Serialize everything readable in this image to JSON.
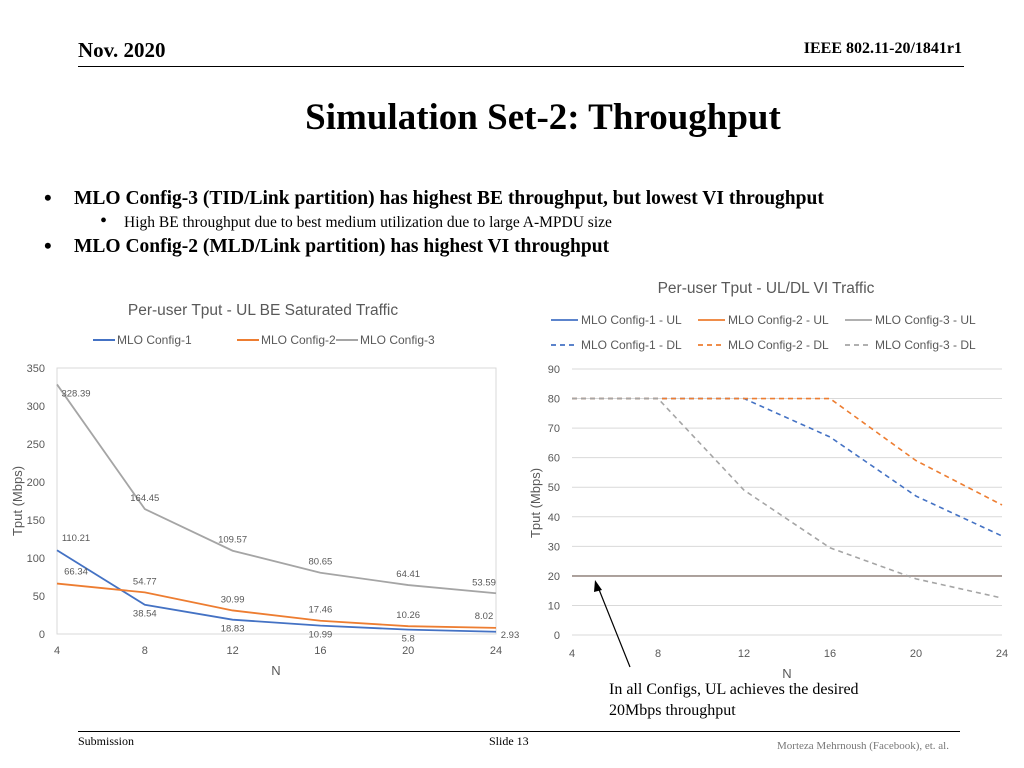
{
  "header": {
    "date": "Nov. 2020",
    "doc_id": "IEEE 802.11-20/1841r1"
  },
  "title": "Simulation Set-2: Throughput",
  "bullets": [
    {
      "text": "MLO Config-3 (TID/Link partition) has highest BE throughput, but lowest VI throughput"
    },
    {
      "text": "High BE throughput due to best medium utilization due to large A-MPDU size"
    },
    {
      "text": "MLO Config-2 (MLD/Link partition) has highest VI throughput"
    }
  ],
  "annotation": {
    "line1": "In all Configs,  UL achieves the desired",
    "line2": "20Mbps throughput"
  },
  "footer": {
    "left": "Submission",
    "center": "Slide 13",
    "right": "Morteza Mehrnoush (Facebook), et. al."
  },
  "colors": {
    "config1": "#4472C4",
    "config2": "#ED7D31",
    "config3": "#A5A5A5",
    "grid": "#D9D9D9",
    "text": "#595959"
  },
  "chart_data": [
    {
      "type": "line",
      "title": "Per-user Tput - UL BE Saturated Traffic",
      "xlabel": "N",
      "ylabel": "Tput (Mbps)",
      "x": [
        4,
        8,
        12,
        16,
        20,
        24
      ],
      "ylim": [
        0,
        350
      ],
      "yticks": [
        0,
        50,
        100,
        150,
        200,
        250,
        300,
        350
      ],
      "grid": false,
      "legend": "top",
      "series": [
        {
          "name": "MLO Config-1",
          "values": [
            110.21,
            38.54,
            18.83,
            10.99,
            5.8,
            2.93
          ],
          "labels": [
            "110.21",
            "38.54",
            "18.83",
            "10.99",
            "5.8",
            "2.93"
          ],
          "color": "#4472C4",
          "dash": false
        },
        {
          "name": "MLO Config-2",
          "values": [
            66.34,
            54.77,
            30.99,
            17.46,
            10.26,
            8.02
          ],
          "labels": [
            "66.34",
            "54.77",
            "30.99",
            "17.46",
            "10.26",
            "8.02"
          ],
          "color": "#ED7D31",
          "dash": false
        },
        {
          "name": "MLO Config-3",
          "values": [
            328.39,
            164.45,
            109.57,
            80.65,
            64.41,
            53.59
          ],
          "labels": [
            "328.39",
            "164.45",
            "109.57",
            "80.65",
            "64.41",
            "53.59"
          ],
          "color": "#A5A5A5",
          "dash": false
        }
      ]
    },
    {
      "type": "line",
      "title": "Per-user Tput - UL/DL VI Traffic",
      "xlabel": "N",
      "ylabel": "Tput (Mbps)",
      "x": [
        4,
        8,
        12,
        16,
        20,
        24
      ],
      "ylim": [
        0,
        90
      ],
      "yticks": [
        0,
        10,
        20,
        30,
        40,
        50,
        60,
        70,
        80,
        90
      ],
      "grid": true,
      "legend": "top",
      "series": [
        {
          "name": "MLO Config-1 - UL",
          "values": [
            20,
            20,
            20,
            20,
            20,
            20
          ],
          "color": "#4472C4",
          "dash": false
        },
        {
          "name": "MLO Config-2 - UL",
          "values": [
            20,
            20,
            20,
            20,
            20,
            20
          ],
          "color": "#ED7D31",
          "dash": false
        },
        {
          "name": "MLO Config-3 - UL",
          "values": [
            20,
            20,
            20,
            20,
            20,
            20
          ],
          "color": "#A5A5A5",
          "dash": false
        },
        {
          "name": "MLO Config-1 - DL",
          "values": [
            80,
            80,
            80,
            67,
            47,
            33.5
          ],
          "color": "#4472C4",
          "dash": true
        },
        {
          "name": "MLO Config-2 - DL",
          "values": [
            80,
            80,
            80,
            80,
            59,
            44
          ],
          "color": "#ED7D31",
          "dash": true
        },
        {
          "name": "MLO Config-3 - DL",
          "values": [
            80,
            80,
            49,
            29.5,
            19,
            12.5
          ],
          "color": "#A5A5A5",
          "dash": true
        }
      ]
    }
  ]
}
